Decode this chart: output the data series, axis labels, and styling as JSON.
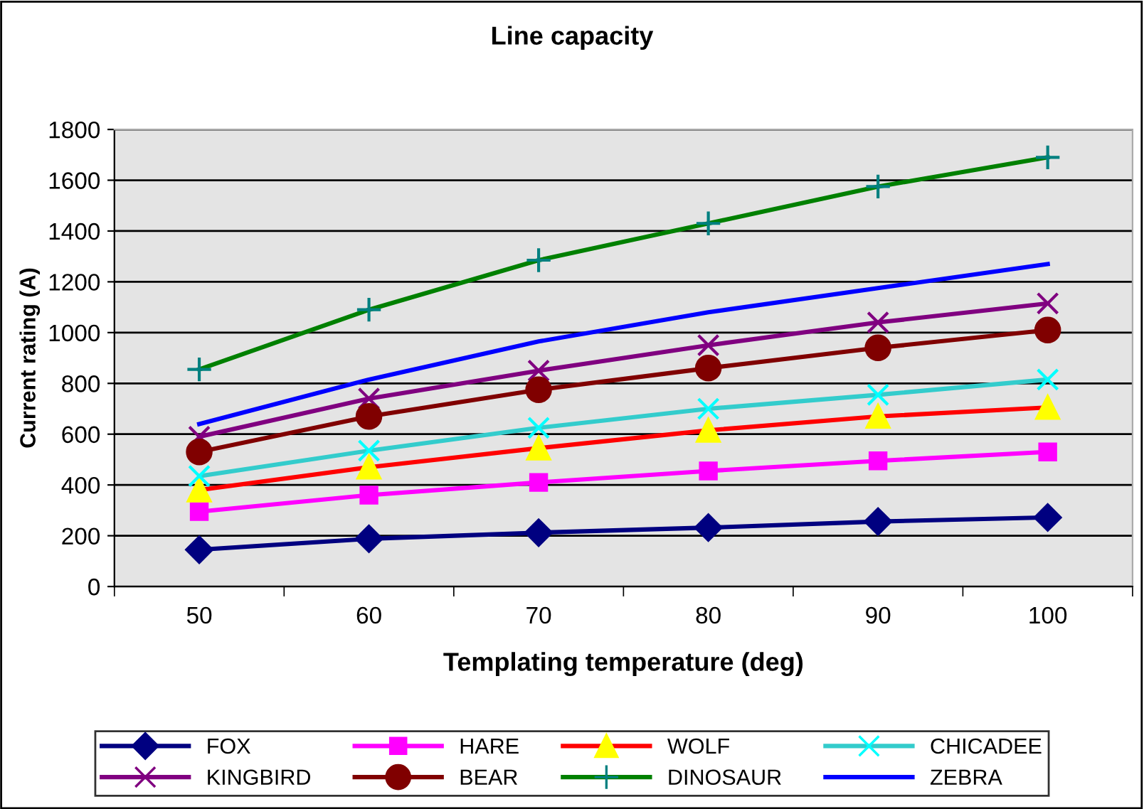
{
  "chart_data": {
    "type": "line",
    "title": "Line capacity",
    "xlabel": "Templating temperature (deg)",
    "ylabel": "Current rating (A)",
    "categories": [
      "50",
      "60",
      "70",
      "80",
      "90",
      "100"
    ],
    "ylim": [
      0,
      1800
    ],
    "yticks": [
      0,
      200,
      400,
      600,
      800,
      1000,
      1200,
      1400,
      1600,
      1800
    ],
    "grid": "y",
    "legend": "bottom",
    "series": [
      {
        "name": "FOX",
        "color": "#000080",
        "marker": "diamond",
        "values": [
          145,
          188,
          212,
          232,
          256,
          272
        ]
      },
      {
        "name": "HARE",
        "color": "#ff00ff",
        "marker": "square",
        "values": [
          295,
          360,
          410,
          455,
          495,
          530
        ]
      },
      {
        "name": "WOLF",
        "color": "#ff0000",
        "colors": [
          "#ffff00",
          "#ffff00",
          "#ffff00",
          "#ffff00",
          "#ffff00",
          "#ffff00"
        ],
        "marker": "triangle",
        "values": [
          380,
          470,
          545,
          615,
          670,
          705
        ]
      },
      {
        "name": "CHICADEE",
        "color": "#33cccc",
        "colors": [
          "#00ffff",
          "#00ffff",
          "#00ffff",
          "#00ffff",
          "#00ffff",
          "#00ffff"
        ],
        "marker": "cross",
        "values": [
          435,
          535,
          625,
          700,
          755,
          815
        ]
      },
      {
        "name": "KINGBIRD",
        "color": "#800080",
        "marker": "cross",
        "values": [
          590,
          740,
          850,
          950,
          1040,
          1115
        ]
      },
      {
        "name": "BEAR",
        "color": "#800000",
        "marker": "circle",
        "values": [
          530,
          670,
          775,
          860,
          940,
          1010
        ]
      },
      {
        "name": "DINOSAUR",
        "color": "#008000",
        "colors": [
          "#008080",
          "#008080",
          "#008080",
          "#008080",
          "#008080",
          "#008080"
        ],
        "marker": "plus",
        "values": [
          855,
          1090,
          1285,
          1430,
          1575,
          1690
        ]
      },
      {
        "name": "ZEBRA",
        "color": "#0000ff",
        "marker": "none",
        "values": [
          640,
          815,
          965,
          1080,
          1175,
          1270
        ]
      }
    ]
  }
}
